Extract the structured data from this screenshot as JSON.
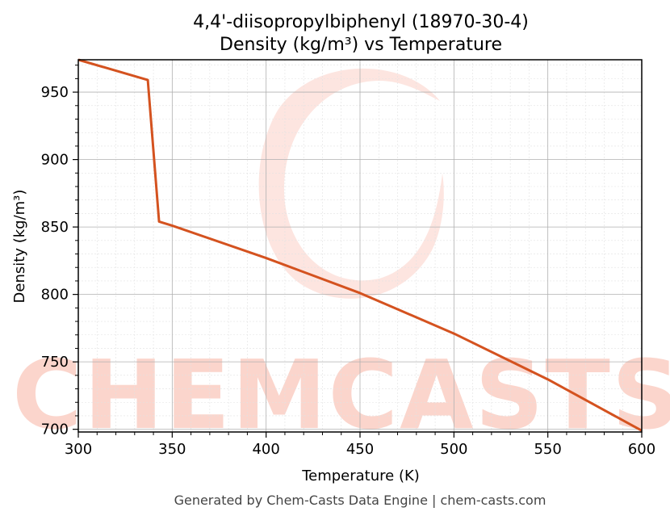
{
  "title_line1": "4,4'-diisopropylbiphenyl (18970-30-4)",
  "title_line2": "Density (kg/m³) vs Temperature",
  "footer": "Generated by Chem-Casts Data Engine | chem-casts.com",
  "watermark": {
    "text": "CHEMCASTS",
    "color": "#fbd5cc"
  },
  "colors": {
    "line": "#d4521f",
    "grid_major": "#b0b0b0",
    "grid_minor": "#e2e2e2"
  },
  "chart_data": {
    "type": "line",
    "xlabel": "Temperature (K)",
    "ylabel": "Density (kg/m³)",
    "xlim": [
      300,
      600
    ],
    "ylim": [
      698,
      974
    ],
    "xticks": [
      300,
      350,
      400,
      450,
      500,
      550,
      600
    ],
    "yticks": [
      700,
      750,
      800,
      850,
      900,
      950
    ],
    "grid": true,
    "series": [
      {
        "x": [
          300,
          337,
          343,
          350,
          400,
          450,
          500,
          550,
          600
        ],
        "y": [
          974,
          959,
          854,
          851,
          827,
          801,
          771,
          737,
          699
        ]
      }
    ]
  }
}
